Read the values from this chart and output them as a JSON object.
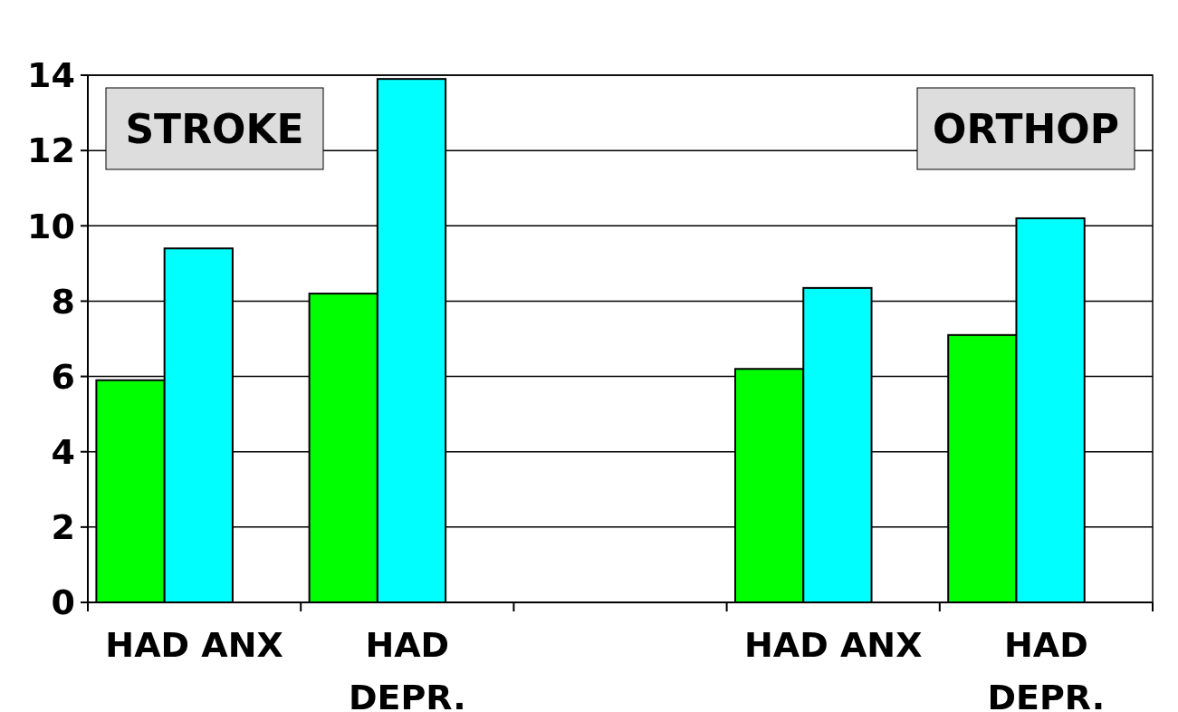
{
  "chart_data": {
    "type": "bar",
    "categories": [
      "HAD ANX",
      "HAD DEPR.",
      null,
      "HAD ANX",
      "HAD DEPR."
    ],
    "series": [
      {
        "color": "#00ff00",
        "values": [
          5.9,
          8.2,
          null,
          6.2,
          7.1
        ]
      },
      {
        "color": "#00ffff",
        "values": [
          9.4,
          13.9,
          null,
          8.35,
          10.2
        ]
      }
    ],
    "ylim": [
      0,
      14
    ],
    "yticks": [
      0,
      2,
      4,
      6,
      8,
      10,
      12,
      14
    ],
    "grid": "y",
    "annotations": [
      "STROKE",
      "ORTHOP"
    ]
  }
}
